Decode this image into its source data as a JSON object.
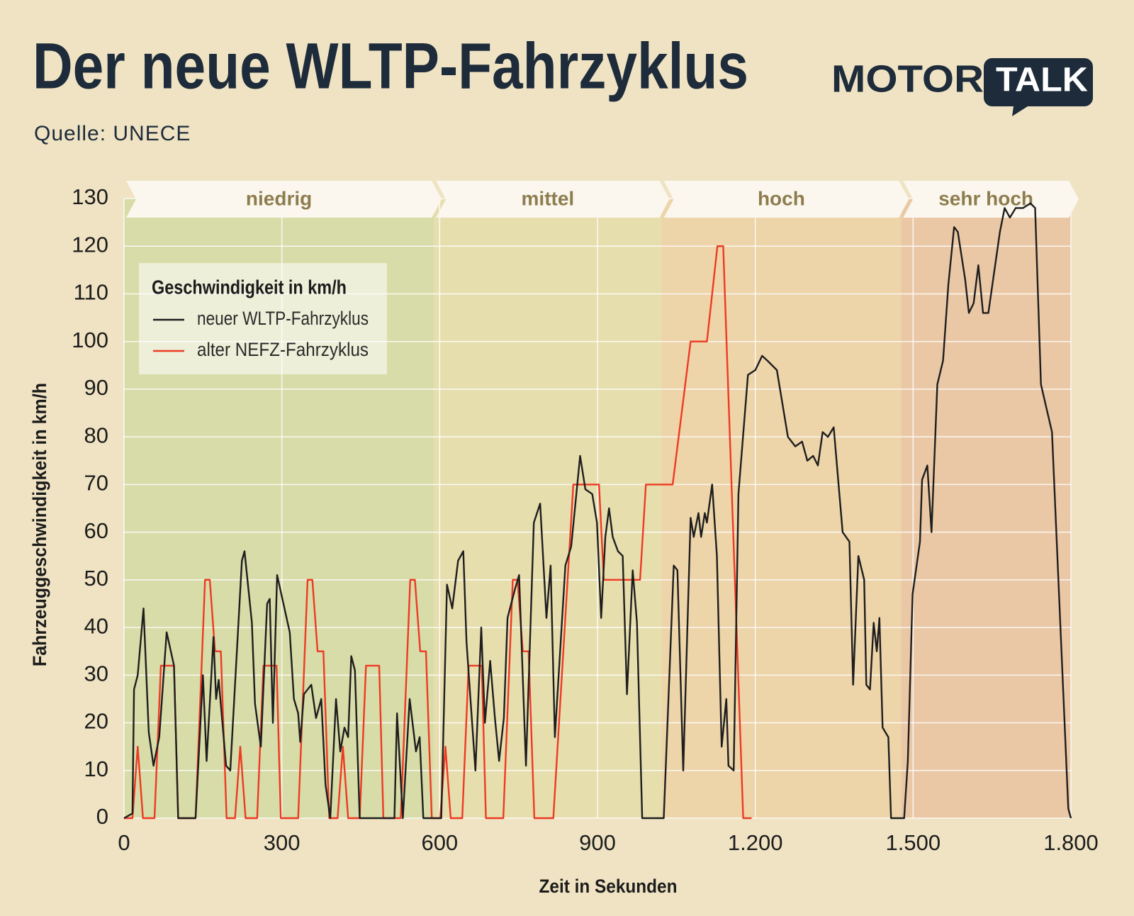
{
  "chart_data": {
    "type": "line",
    "title": "Der neue WLTP-Fahrzyklus",
    "subtitle": "Quelle: UNECE",
    "xlabel": "Zeit in Sekunden",
    "ylabel": "Fahrzeuggeschwindigkeit in km/h",
    "legend_title": "Geschwindigkeit in km/h",
    "legend": "upper left",
    "grid": true,
    "xlim": [
      0,
      1800
    ],
    "ylim": [
      0,
      130
    ],
    "xticks": [
      0,
      300,
      600,
      900,
      {
        "value": 1200,
        "label": "1.200"
      },
      {
        "value": 1500,
        "label": "1.500"
      },
      {
        "value": 1800,
        "label": "1.800"
      }
    ],
    "yticks": [
      0,
      10,
      20,
      30,
      40,
      50,
      60,
      70,
      80,
      90,
      100,
      110,
      120,
      130
    ],
    "phases": [
      {
        "label": "niedrig",
        "start": 0,
        "end": 589,
        "color": "#d7dca8"
      },
      {
        "label": "mittel",
        "start": 589,
        "end": 1022,
        "color": "#e7deae"
      },
      {
        "label": "hoch",
        "start": 1022,
        "end": 1477,
        "color": "#edd4a9"
      },
      {
        "label": "sehr hoch",
        "start": 1477,
        "end": 1800,
        "color": "#eac8a6"
      }
    ],
    "series": [
      {
        "name": "neuer WLTP-Fahrzyklus",
        "color": "#1e1e1e",
        "x": [
          0,
          16,
          19,
          26,
          37,
          47,
          56,
          67,
          81,
          95,
          103,
          136,
          150,
          157,
          170,
          175,
          180,
          194,
          202,
          224,
          229,
          243,
          249,
          260,
          272,
          277,
          283,
          291,
          315,
          323,
          331,
          335,
          342,
          356,
          365,
          375,
          383,
          392,
          403,
          411,
          419,
          426,
          432,
          439,
          448,
          514,
          519,
          530,
          543,
          555,
          562,
          569,
          603,
          614,
          624,
          635,
          645,
          651,
          668,
          679,
          686,
          696,
          705,
          713,
          722,
          729,
          743,
          751,
          764,
          779,
          791,
          803,
          811,
          819,
          839,
          850,
          867,
          877,
          890,
          899,
          907,
          915,
          922,
          929,
          939,
          948,
          956,
          967,
          975,
          985,
          1026,
          1045,
          1052,
          1063,
          1077,
          1083,
          1092,
          1097,
          1104,
          1108,
          1118,
          1127,
          1136,
          1145,
          1149,
          1159,
          1168,
          1186,
          1200,
          1213,
          1223,
          1241,
          1262,
          1269,
          1276,
          1289,
          1299,
          1310,
          1319,
          1328,
          1338,
          1349,
          1366,
          1379,
          1386,
          1396,
          1407,
          1411,
          1418,
          1425,
          1431,
          1436,
          1442,
          1453,
          1458,
          1483,
          1490,
          1499,
          1513,
          1517,
          1527,
          1535,
          1546,
          1557,
          1567,
          1578,
          1585,
          1599,
          1606,
          1615,
          1624,
          1633,
          1643,
          1665,
          1674,
          1684,
          1695,
          1709,
          1723,
          1732,
          1743,
          1764,
          1795,
          1800
        ],
        "values": [
          0,
          1,
          27,
          30,
          44,
          18,
          11,
          17,
          39,
          32,
          0,
          0,
          30,
          12,
          38,
          25,
          29,
          11,
          10,
          54,
          56,
          41,
          24,
          15,
          45,
          46,
          20,
          51,
          39,
          25,
          22,
          16,
          26,
          28,
          21,
          25,
          7,
          0,
          25,
          14,
          19,
          17,
          34,
          31,
          0,
          0,
          22,
          0,
          25,
          14,
          17,
          0,
          0,
          49,
          44,
          54,
          56,
          37,
          10,
          40,
          20,
          33,
          21,
          12,
          21,
          42,
          48,
          51,
          11,
          62,
          66,
          42,
          53,
          17,
          53,
          57,
          76,
          69,
          68,
          62,
          42,
          59,
          65,
          59,
          56,
          55,
          26,
          52,
          41,
          0,
          0,
          53,
          52,
          10,
          63,
          59,
          64,
          59,
          64,
          62,
          70,
          55,
          15,
          25,
          11,
          10,
          68,
          93,
          94,
          97,
          96,
          94,
          80,
          79,
          78,
          79,
          75,
          76,
          74,
          81,
          80,
          82,
          60,
          58,
          28,
          55,
          50,
          28,
          27,
          41,
          35,
          42,
          19,
          17,
          0,
          0,
          12,
          47,
          58,
          71,
          74,
          60,
          91,
          96,
          112,
          124,
          123,
          113,
          106,
          108,
          116,
          106,
          106,
          123,
          128,
          126,
          128,
          128,
          129,
          128,
          91,
          81,
          2,
          0
        ]
      },
      {
        "name": "alter NEFZ-Fahrzyklus",
        "color": "#ee3a24",
        "x": [
          0,
          16,
          26,
          36,
          58,
          70,
          95,
          103,
          136,
          154,
          163,
          173,
          184,
          195,
          211,
          221,
          231,
          253,
          265,
          290,
          298,
          331,
          349,
          358,
          368,
          379,
          390,
          406,
          416,
          426,
          448,
          460,
          485,
          493,
          526,
          544,
          553,
          563,
          574,
          585,
          601,
          611,
          621,
          643,
          655,
          680,
          688,
          721,
          739,
          748,
          758,
          769,
          780,
          816,
          854,
          903,
          912,
          981,
          992,
          1043,
          1077,
          1108,
          1128,
          1139,
          1177,
          1193
        ],
        "values": [
          0,
          0,
          15,
          0,
          0,
          32,
          32,
          0,
          0,
          50,
          50,
          35,
          35,
          0,
          0,
          15,
          0,
          0,
          32,
          32,
          0,
          0,
          50,
          50,
          35,
          35,
          0,
          0,
          15,
          0,
          0,
          32,
          32,
          0,
          0,
          50,
          50,
          35,
          35,
          0,
          0,
          15,
          0,
          0,
          32,
          32,
          0,
          0,
          50,
          50,
          35,
          35,
          0,
          0,
          70,
          70,
          50,
          50,
          70,
          70,
          100,
          100,
          120,
          120,
          0,
          0
        ]
      }
    ]
  },
  "logo": {
    "left": "MOTOR",
    "right": "TALK"
  }
}
